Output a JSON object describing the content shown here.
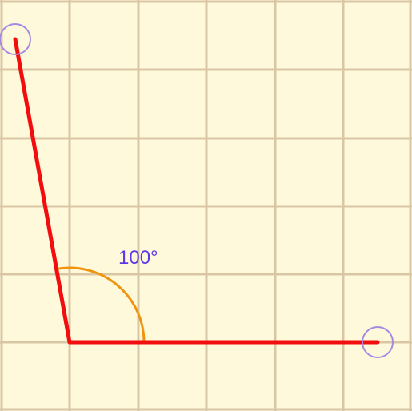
{
  "diagram": {
    "angle_label": "100°",
    "angle_degrees": 100
  },
  "colors": {
    "background": "#FFF9DC",
    "grid": "#D9C6A4",
    "ray": "#F20E0E",
    "arc": "#F0940E",
    "handle": "#A58BE0",
    "label": "#5F37E6"
  }
}
